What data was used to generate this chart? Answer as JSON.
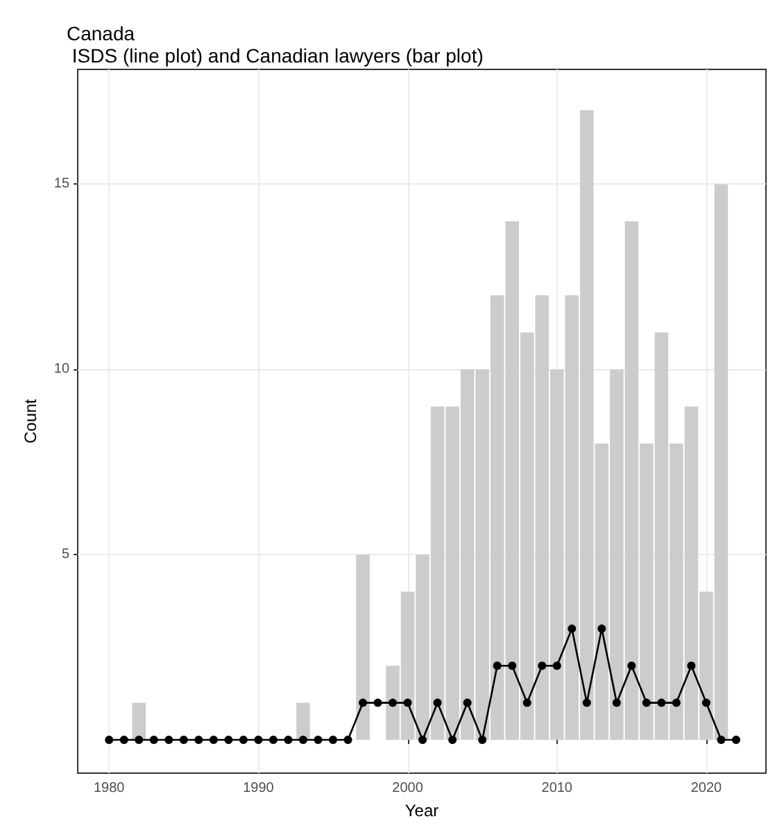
{
  "chart_data": {
    "type": "bar",
    "title": "Canada",
    "subtitle": " ISDS (line plot) and Canadian lawyers (bar plot)",
    "xlabel": "Year",
    "ylabel": "Count",
    "xlim": [
      1977.9,
      2024
    ],
    "xticks": [
      1980,
      1990,
      2000,
      2010,
      2020
    ],
    "ylim": [
      -0.9,
      18.1
    ],
    "yticks": [
      5,
      10,
      15
    ],
    "grid": true,
    "series": [
      {
        "color": "#cccccc",
        "x": [
          1982,
          1993,
          1997,
          1999,
          2000,
          2001,
          2002,
          2003,
          2004,
          2005,
          2006,
          2007,
          2008,
          2009,
          2010,
          2011,
          2012,
          2013,
          2014,
          2015,
          2016,
          2017,
          2018,
          2019,
          2020,
          2021
        ],
        "values": [
          1,
          1,
          5,
          2,
          4,
          5,
          9,
          9,
          10,
          10,
          12,
          14,
          11,
          12,
          10,
          12,
          17,
          8,
          10,
          14,
          8,
          11,
          8,
          9,
          4,
          15
        ]
      },
      {
        "type": "line",
        "color": "#000000",
        "marker": "circle",
        "line_style": "solid",
        "x": [
          1980,
          1981,
          1982,
          1983,
          1984,
          1985,
          1986,
          1987,
          1988,
          1989,
          1990,
          1991,
          1992,
          1993,
          1994,
          1995,
          1996,
          1997,
          1998,
          1999,
          2000,
          2001,
          2002,
          2003,
          2004,
          2005,
          2006,
          2007,
          2008,
          2009,
          2010,
          2011,
          2012,
          2013,
          2014,
          2015,
          2016,
          2017,
          2018,
          2019,
          2020,
          2021,
          2022
        ],
        "values": [
          0,
          0,
          0,
          0,
          0,
          0,
          0,
          0,
          0,
          0,
          0,
          0,
          0,
          0,
          0,
          0,
          0,
          1,
          1,
          1,
          1,
          0,
          1,
          0,
          1,
          0,
          2,
          2,
          1,
          2,
          2,
          3,
          1,
          3,
          1,
          2,
          1,
          1,
          1,
          2,
          1,
          0,
          0
        ]
      }
    ]
  }
}
